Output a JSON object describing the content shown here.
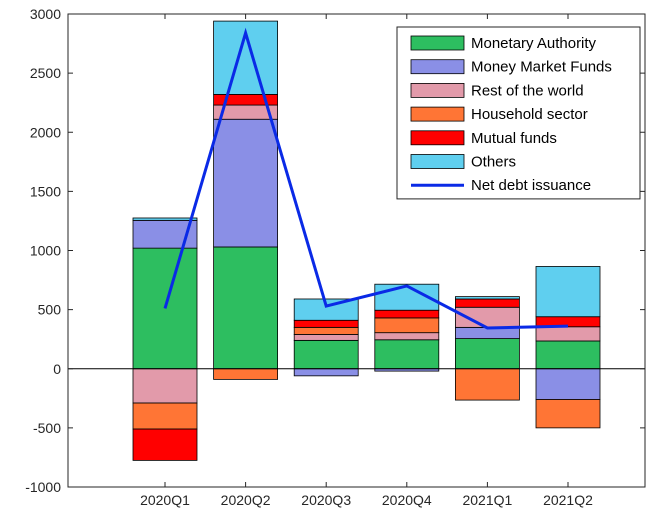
{
  "chart_data": {
    "type": "bar",
    "stacked": true,
    "categories": [
      "2020Q1",
      "2020Q2",
      "2020Q3",
      "2020Q4",
      "2021Q1",
      "2021Q2"
    ],
    "ylim": [
      -1000,
      3000
    ],
    "yticks": [
      -1000,
      -500,
      0,
      500,
      1000,
      1500,
      2000,
      2500,
      3000
    ],
    "legend_position": "top-right",
    "grid": false,
    "zero_line": true,
    "series": [
      {
        "name": "Monetary Authority",
        "color": "#2DBE60",
        "values": [
          1020,
          1030,
          240,
          245,
          255,
          235
        ]
      },
      {
        "name": "Money Market Funds",
        "color": "#8A8FE6",
        "values": [
          235,
          1080,
          -60,
          -20,
          95,
          -260
        ]
      },
      {
        "name": "Rest of the world",
        "color": "#E29AAA",
        "values": [
          -290,
          120,
          50,
          60,
          170,
          120
        ]
      },
      {
        "name": "Household sector",
        "color": "#FF7535",
        "values": [
          -220,
          -90,
          60,
          125,
          -265,
          -240
        ]
      },
      {
        "name": "Mutual funds",
        "color": "#FF0000",
        "values": [
          -265,
          90,
          60,
          65,
          70,
          85
        ]
      },
      {
        "name": "Others",
        "color": "#5FCFEF",
        "values": [
          20,
          620,
          180,
          220,
          20,
          425
        ]
      }
    ],
    "line_series": {
      "name": "Net debt issuance",
      "color": "#0A2AE6",
      "values": [
        510,
        2840,
        530,
        700,
        345,
        360
      ]
    }
  }
}
